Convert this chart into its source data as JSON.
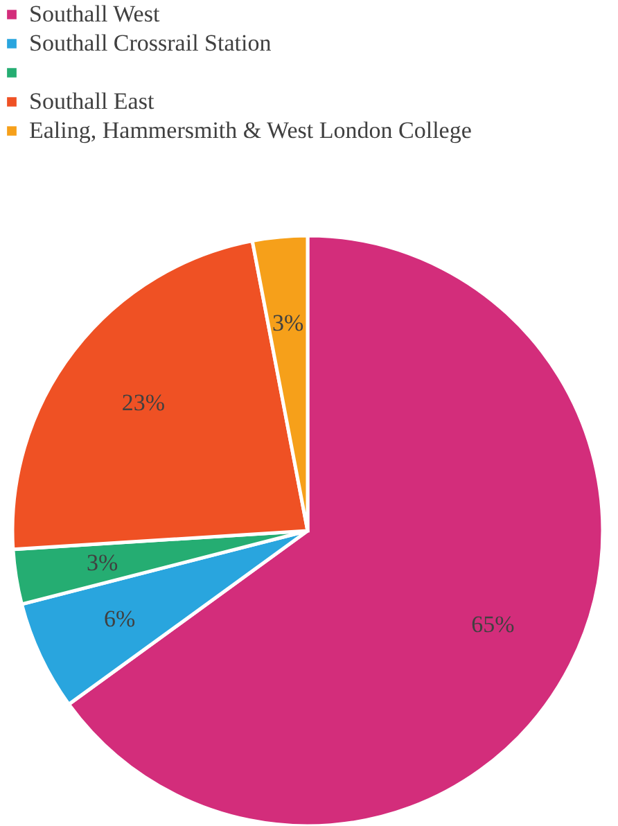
{
  "chart_data": {
    "type": "pie",
    "categories": [
      "Southall West",
      "Southall Crossrail Station",
      null,
      "Southall East",
      "Ealing, Hammersmith & West London College"
    ],
    "values": [
      65,
      6,
      3,
      23,
      3
    ],
    "colors": [
      "#d32d7b",
      "#29a5de",
      "#25ad72",
      "#ef5124",
      "#f6a01a"
    ],
    "value_labels": [
      "65%",
      "6%",
      "3%",
      "23%",
      "3%"
    ],
    "legend": "top left"
  }
}
